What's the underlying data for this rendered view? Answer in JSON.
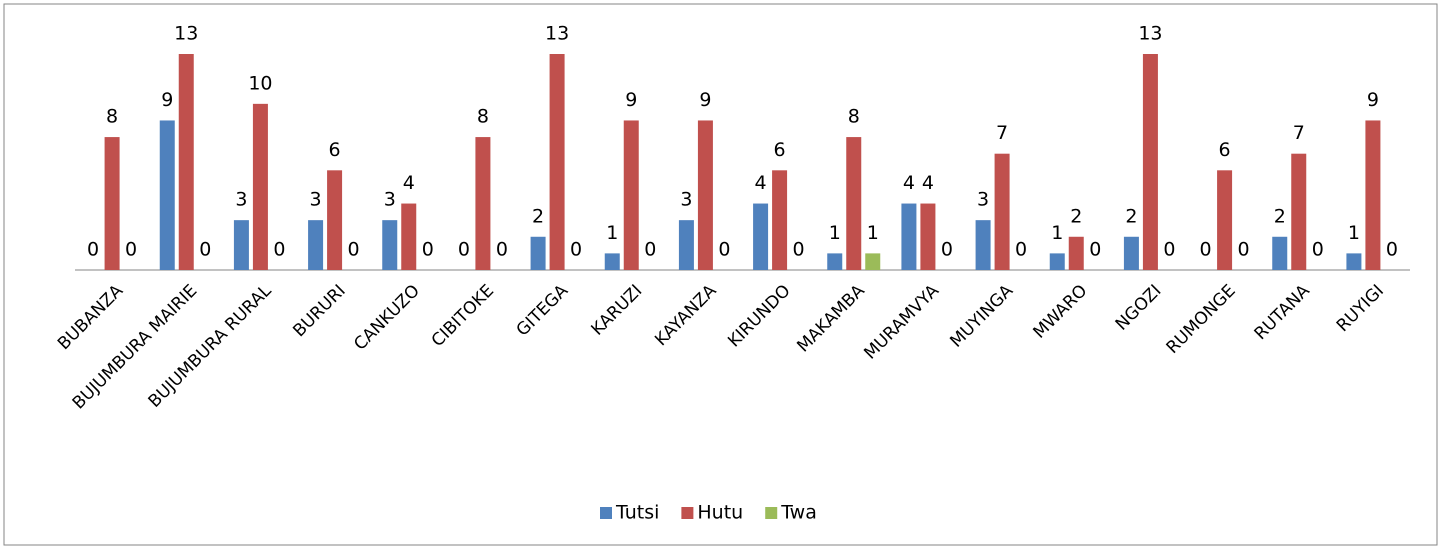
{
  "chart_data": {
    "type": "bar",
    "categories": [
      "BUBANZA",
      "BUJUMBURA MAIRIE",
      "BUJUMBURA RURAL",
      "BURURI",
      "CANKUZO",
      "CIBITOKE",
      "GITEGA",
      "KARUZI",
      "KAYANZA",
      "KIRUNDO",
      "MAKAMBA",
      "MURAMVYA",
      "MUYINGA",
      "MWARO",
      "NGOZI",
      "RUMONGE",
      "RUTANA",
      "RUYIGI"
    ],
    "series": [
      {
        "name": "Tutsi",
        "color": "#4f81bd",
        "values": [
          0,
          9,
          3,
          3,
          3,
          0,
          2,
          1,
          3,
          4,
          1,
          4,
          3,
          1,
          2,
          0,
          2,
          1
        ]
      },
      {
        "name": "Hutu",
        "color": "#c0504d",
        "values": [
          8,
          13,
          10,
          6,
          4,
          8,
          13,
          9,
          9,
          6,
          8,
          4,
          7,
          2,
          13,
          6,
          7,
          9
        ]
      },
      {
        "name": "Twa",
        "color": "#9bbb59",
        "values": [
          0,
          0,
          0,
          0,
          0,
          0,
          0,
          0,
          0,
          0,
          1,
          0,
          0,
          0,
          0,
          0,
          0,
          0
        ]
      }
    ],
    "legend": "bottom"
  }
}
